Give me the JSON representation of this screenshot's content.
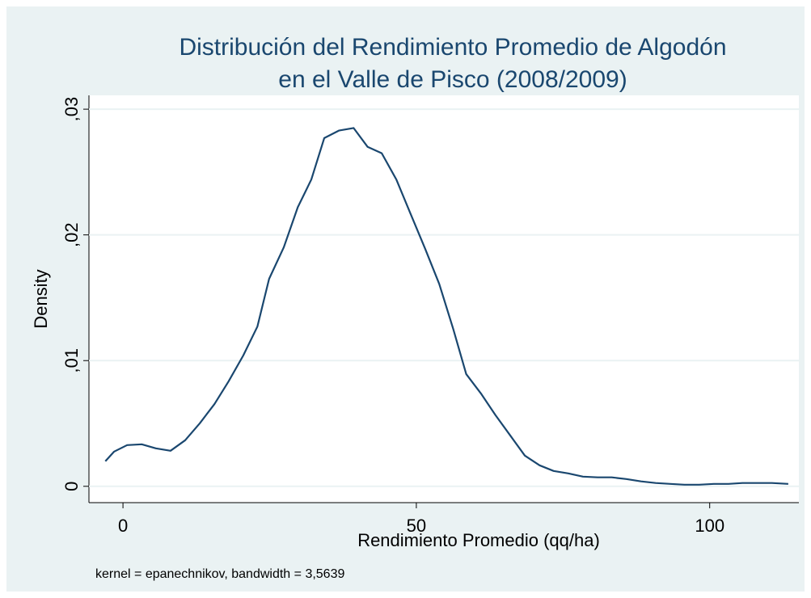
{
  "chart_data": {
    "type": "line",
    "title": "Distribución del Rendimiento Promedio de Algodón",
    "subtitle": "en el Valle de Pisco (2008/2009)",
    "x_label": "Rendimiento Promedio (qq/ha)",
    "y_label": "Density",
    "note": "kernel = epanechnikov, bandwidth = 3,5639",
    "color": "#1a476f",
    "grid": true,
    "xlim": [
      -5.8,
      115.2
    ],
    "ylim": [
      -0.0013,
      0.0311
    ],
    "xticks": [
      0,
      50,
      100
    ],
    "yticks": [
      0,
      {
        "value": 0.01,
        "label": ",01"
      },
      {
        "value": 0.02,
        "label": ",02"
      },
      {
        "value": 0.03,
        "label": ",03"
      }
    ],
    "x": [
      -3.0,
      -1.5,
      0.7,
      3.2,
      5.6,
      8.1,
      10.6,
      13.1,
      15.6,
      18.0,
      20.5,
      22.9,
      24.9,
      27.4,
      29.8,
      32.1,
      34.3,
      36.8,
      39.3,
      41.7,
      44.1,
      46.6,
      49.0,
      51.5,
      53.9,
      56.3,
      58.5,
      61.0,
      63.5,
      66.0,
      68.5,
      71.0,
      73.4,
      75.9,
      78.4,
      80.9,
      83.3,
      85.8,
      88.3,
      90.8,
      93.3,
      95.7,
      98.2,
      100.7,
      103.2,
      105.6,
      108.1,
      110.6,
      113.4
    ],
    "values": [
      0.00199,
      0.00276,
      0.00328,
      0.00334,
      0.00302,
      0.00283,
      0.00366,
      0.00501,
      0.00655,
      0.00835,
      0.0104,
      0.0127,
      0.0165,
      0.019,
      0.0222,
      0.0244,
      0.0277,
      0.0283,
      0.0285,
      0.027,
      0.0265,
      0.0244,
      0.0217,
      0.0189,
      0.0161,
      0.0125,
      0.00893,
      0.00739,
      0.00565,
      0.00405,
      0.00244,
      0.00167,
      0.00122,
      0.00103,
      0.00077,
      0.00071,
      0.00071,
      0.00058,
      0.00039,
      0.00026,
      0.00019,
      0.00013,
      0.00013,
      0.00019,
      0.00019,
      0.00026,
      0.00026,
      0.00026,
      0.00019
    ]
  }
}
